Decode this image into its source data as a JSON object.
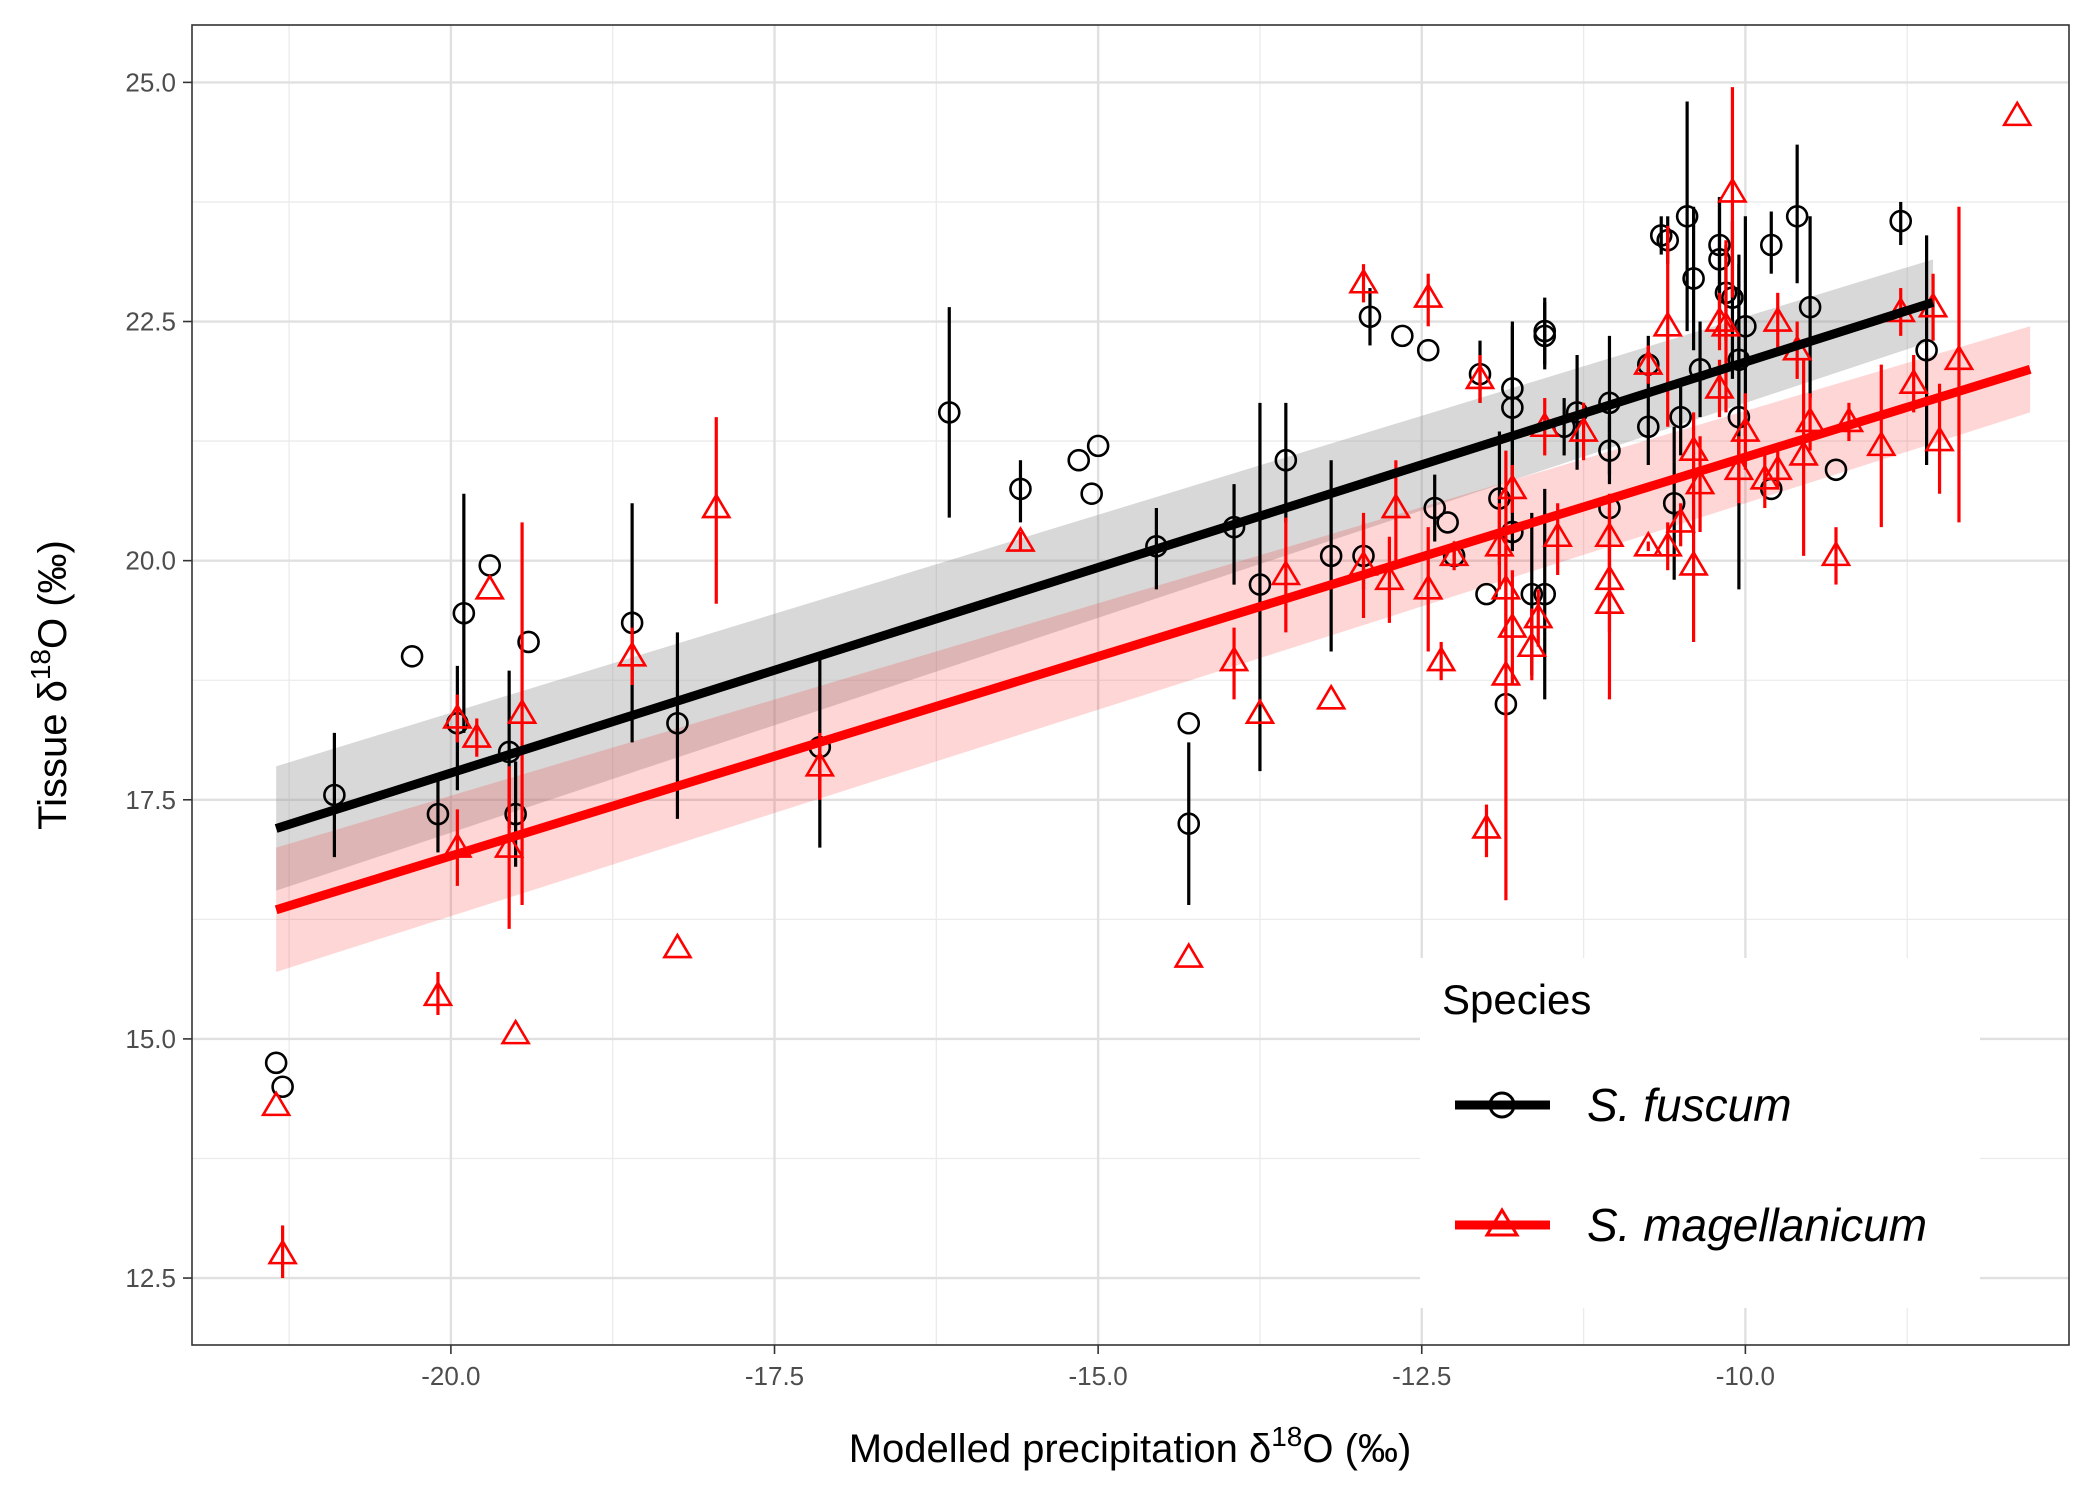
{
  "chart_data": {
    "type": "scatter",
    "xlabel": {
      "prefix": "Modelled precipitation δ",
      "sup": "18",
      "suffix": "O (‰)"
    },
    "ylabel": {
      "prefix": "Tissue δ",
      "sup": "18",
      "suffix": "O (‰)"
    },
    "xlim": [
      -22.0,
      -7.5
    ],
    "ylim": [
      11.8,
      25.6
    ],
    "xticks": [
      -20.0,
      -17.5,
      -15.0,
      -12.5,
      -10.0
    ],
    "xtick_labels": [
      "-20.0",
      "-17.5",
      "-15.0",
      "-12.5",
      "-10.0"
    ],
    "yticks": [
      12.5,
      15.0,
      17.5,
      20.0,
      22.5,
      25.0
    ],
    "ytick_labels": [
      "12.5",
      "15.0",
      "17.5",
      "20.0",
      "22.5",
      "25.0"
    ],
    "grid": true,
    "legend": {
      "title": "Species",
      "placement": "bottom-right"
    },
    "series": [
      {
        "name": "S. fuscum",
        "color": "#000000",
        "marker": "circle",
        "fit": {
          "x": [
            -21.35,
            -8.55
          ],
          "y": [
            17.2,
            22.7
          ],
          "ci_lower": [
            16.55,
            22.3
          ],
          "ci_upper": [
            17.85,
            23.15
          ]
        },
        "points": [
          [
            -21.35,
            14.75,
            14.75,
            14.75
          ],
          [
            -21.3,
            14.5,
            14.5,
            14.5
          ],
          [
            -20.9,
            17.55,
            16.9,
            18.2
          ],
          [
            -20.3,
            19.0,
            19.0,
            19.0
          ],
          [
            -20.1,
            17.35,
            16.95,
            17.75
          ],
          [
            -19.95,
            18.3,
            17.6,
            18.9
          ],
          [
            -19.9,
            19.45,
            18.2,
            20.7
          ],
          [
            -19.7,
            19.95,
            19.95,
            19.95
          ],
          [
            -19.55,
            18.0,
            17.2,
            18.85
          ],
          [
            -19.5,
            17.35,
            16.8,
            17.9
          ],
          [
            -19.4,
            19.15,
            19.15,
            19.15
          ],
          [
            -18.6,
            19.35,
            18.1,
            20.6
          ],
          [
            -18.25,
            18.3,
            17.3,
            19.25
          ],
          [
            -17.15,
            18.05,
            17.0,
            19.05
          ],
          [
            -16.15,
            21.55,
            20.45,
            22.65
          ],
          [
            -15.6,
            20.75,
            20.4,
            21.05
          ],
          [
            -15.15,
            21.05,
            21.05,
            21.05
          ],
          [
            -15.0,
            21.2,
            21.2,
            21.2
          ],
          [
            -15.05,
            20.7,
            20.7,
            20.7
          ],
          [
            -14.55,
            20.15,
            19.7,
            20.55
          ],
          [
            -14.3,
            18.3,
            18.3,
            18.3
          ],
          [
            -14.3,
            17.25,
            16.4,
            18.1
          ],
          [
            -13.95,
            20.35,
            19.75,
            20.8
          ],
          [
            -13.75,
            19.75,
            17.8,
            21.65
          ],
          [
            -13.55,
            21.05,
            20.4,
            21.65
          ],
          [
            -13.2,
            20.05,
            19.05,
            21.05
          ],
          [
            -12.95,
            20.05,
            19.7,
            20.4
          ],
          [
            -12.9,
            22.55,
            22.25,
            22.85
          ],
          [
            -12.65,
            22.35,
            22.35,
            22.35
          ],
          [
            -12.45,
            22.2,
            22.2,
            22.2
          ],
          [
            -12.4,
            20.55,
            20.2,
            20.9
          ],
          [
            -12.3,
            20.4,
            20.4,
            20.4
          ],
          [
            -12.25,
            20.05,
            19.95,
            20.15
          ],
          [
            -12.05,
            21.95,
            21.65,
            22.3
          ],
          [
            -12.0,
            19.65,
            19.65,
            19.65
          ],
          [
            -11.9,
            20.65,
            19.95,
            21.35
          ],
          [
            -11.85,
            18.5,
            18.5,
            18.5
          ],
          [
            -11.8,
            20.3,
            20.3,
            20.3
          ],
          [
            -11.8,
            21.8,
            20.1,
            22.45
          ],
          [
            -11.8,
            21.6,
            20.75,
            22.5
          ],
          [
            -11.65,
            19.65,
            18.8,
            20.5
          ],
          [
            -11.55,
            22.4,
            22.05,
            22.75
          ],
          [
            -11.55,
            22.35,
            22.0,
            22.7
          ],
          [
            -11.55,
            19.65,
            18.55,
            20.75
          ],
          [
            -11.4,
            21.4,
            21.1,
            21.7
          ],
          [
            -11.3,
            21.55,
            20.95,
            22.15
          ],
          [
            -11.05,
            21.65,
            20.9,
            22.35
          ],
          [
            -11.05,
            21.15,
            20.8,
            21.5
          ],
          [
            -11.05,
            20.55,
            20.55,
            20.55
          ],
          [
            -10.75,
            22.05,
            21.75,
            22.35
          ],
          [
            -10.75,
            21.4,
            21.0,
            21.8
          ],
          [
            -10.65,
            23.4,
            23.2,
            23.6
          ],
          [
            -10.6,
            23.35,
            23.1,
            23.6
          ],
          [
            -10.55,
            20.6,
            19.8,
            21.4
          ],
          [
            -10.5,
            21.5,
            21.1,
            21.9
          ],
          [
            -10.45,
            23.6,
            22.4,
            24.8
          ],
          [
            -10.4,
            22.95,
            22.2,
            23.7
          ],
          [
            -10.35,
            22.0,
            21.5,
            22.5
          ],
          [
            -10.2,
            23.3,
            22.8,
            23.8
          ],
          [
            -10.2,
            23.15,
            22.5,
            23.8
          ],
          [
            -10.15,
            22.8,
            22.3,
            23.3
          ],
          [
            -10.1,
            22.75,
            21.9,
            23.55
          ],
          [
            -10.05,
            21.5,
            19.7,
            23.2
          ],
          [
            -10.05,
            22.1,
            21.0,
            23.1
          ],
          [
            -10.0,
            22.45,
            21.3,
            23.6
          ],
          [
            -9.8,
            20.75,
            20.75,
            20.75
          ],
          [
            -9.8,
            23.3,
            23.0,
            23.65
          ],
          [
            -9.6,
            23.6,
            22.9,
            24.35
          ],
          [
            -9.5,
            22.65,
            21.7,
            23.6
          ],
          [
            -9.3,
            20.95,
            20.95,
            20.95
          ],
          [
            -8.8,
            23.55,
            23.3,
            23.75
          ],
          [
            -8.6,
            22.2,
            21.0,
            23.4
          ]
        ]
      },
      {
        "name": "S. magellanicum",
        "color": "#ff0000",
        "marker": "triangle",
        "fit": {
          "x": [
            -21.35,
            -7.8
          ],
          "y": [
            16.35,
            22.0
          ],
          "ci_lower": [
            15.7,
            21.55
          ],
          "ci_upper": [
            17.0,
            22.45
          ]
        },
        "points": [
          [
            -21.35,
            14.3,
            14.3,
            14.3
          ],
          [
            -21.3,
            12.75,
            12.5,
            13.05
          ],
          [
            -20.1,
            15.45,
            15.25,
            15.7
          ],
          [
            -19.95,
            17.0,
            16.6,
            17.4
          ],
          [
            -19.95,
            18.35,
            18.1,
            18.6
          ],
          [
            -19.8,
            18.15,
            17.95,
            18.35
          ],
          [
            -19.7,
            19.7,
            19.7,
            19.7
          ],
          [
            -19.55,
            17.0,
            16.15,
            17.85
          ],
          [
            -19.5,
            15.05,
            15.05,
            15.05
          ],
          [
            -19.45,
            18.4,
            16.4,
            20.4
          ],
          [
            -18.6,
            19.0,
            18.7,
            19.3
          ],
          [
            -18.25,
            15.95,
            15.95,
            15.95
          ],
          [
            -17.95,
            20.55,
            19.55,
            21.5
          ],
          [
            -17.15,
            17.85,
            17.5,
            18.2
          ],
          [
            -15.6,
            20.2,
            20.1,
            20.3
          ],
          [
            -14.3,
            15.85,
            15.85,
            15.85
          ],
          [
            -13.95,
            18.95,
            18.55,
            19.3
          ],
          [
            -13.75,
            18.4,
            18.4,
            18.4
          ],
          [
            -13.55,
            19.85,
            19.25,
            20.45
          ],
          [
            -13.2,
            18.55,
            18.55,
            18.55
          ],
          [
            -12.95,
            22.9,
            22.7,
            23.1
          ],
          [
            -12.95,
            19.95,
            19.4,
            20.5
          ],
          [
            -12.75,
            19.8,
            19.35,
            20.25
          ],
          [
            -12.7,
            20.55,
            20.0,
            21.05
          ],
          [
            -12.45,
            22.75,
            22.45,
            23.0
          ],
          [
            -12.45,
            19.7,
            19.05,
            20.35
          ],
          [
            -12.35,
            18.95,
            18.75,
            19.15
          ],
          [
            -12.25,
            20.05,
            19.9,
            20.2
          ],
          [
            -12.05,
            21.9,
            21.65,
            22.15
          ],
          [
            -12.0,
            17.2,
            16.9,
            17.45
          ],
          [
            -11.9,
            20.15,
            19.7,
            20.6
          ],
          [
            -11.85,
            18.8,
            16.45,
            21.15
          ],
          [
            -11.85,
            19.7,
            19.2,
            20.15
          ],
          [
            -11.8,
            19.3,
            18.7,
            19.9
          ],
          [
            -11.8,
            20.75,
            20.5,
            21.0
          ],
          [
            -11.65,
            19.1,
            18.75,
            19.5
          ],
          [
            -11.6,
            19.4,
            19.1,
            19.7
          ],
          [
            -11.55,
            21.4,
            21.1,
            21.7
          ],
          [
            -11.45,
            20.25,
            19.85,
            20.6
          ],
          [
            -11.25,
            21.35,
            21.05,
            21.65
          ],
          [
            -11.05,
            19.55,
            18.55,
            20.55
          ],
          [
            -11.05,
            19.8,
            19.25,
            20.35
          ],
          [
            -11.05,
            20.25,
            19.8,
            20.7
          ],
          [
            -10.75,
            20.15,
            20.1,
            20.2
          ],
          [
            -10.75,
            22.05,
            21.85,
            22.25
          ],
          [
            -10.6,
            20.15,
            19.9,
            20.4
          ],
          [
            -10.6,
            22.45,
            21.4,
            23.5
          ],
          [
            -10.5,
            20.4,
            20.15,
            20.6
          ],
          [
            -10.4,
            19.95,
            19.15,
            20.7
          ],
          [
            -10.4,
            21.15,
            20.7,
            21.55
          ],
          [
            -10.35,
            20.8,
            20.3,
            21.3
          ],
          [
            -10.2,
            22.5,
            22.2,
            22.8
          ],
          [
            -10.2,
            21.8,
            21.5,
            22.1
          ],
          [
            -10.15,
            22.45,
            21.55,
            23.35
          ],
          [
            -10.1,
            23.85,
            22.75,
            24.95
          ],
          [
            -10.05,
            20.95,
            20.6,
            21.3
          ],
          [
            -10.0,
            21.35,
            20.95,
            21.75
          ],
          [
            -9.85,
            20.85,
            20.55,
            21.15
          ],
          [
            -9.75,
            20.95,
            20.75,
            21.15
          ],
          [
            -9.75,
            22.5,
            22.2,
            22.8
          ],
          [
            -9.6,
            22.2,
            21.9,
            22.5
          ],
          [
            -9.55,
            21.1,
            20.05,
            22.1
          ],
          [
            -9.5,
            21.45,
            21.15,
            21.75
          ],
          [
            -9.3,
            20.05,
            19.75,
            20.35
          ],
          [
            -9.2,
            21.45,
            21.25,
            21.65
          ],
          [
            -8.95,
            21.2,
            20.35,
            22.05
          ],
          [
            -8.8,
            22.6,
            22.35,
            22.85
          ],
          [
            -8.7,
            21.85,
            21.55,
            22.15
          ],
          [
            -8.55,
            22.65,
            22.3,
            23.0
          ],
          [
            -8.5,
            21.25,
            20.7,
            21.85
          ],
          [
            -8.35,
            22.1,
            20.4,
            23.7
          ],
          [
            -7.9,
            24.65,
            24.65,
            24.65
          ]
        ]
      }
    ]
  }
}
